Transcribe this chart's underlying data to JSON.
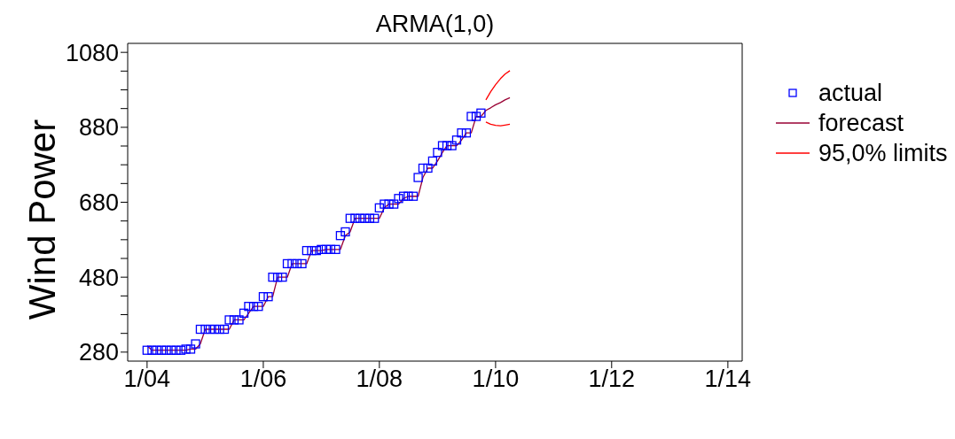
{
  "chart_data": {
    "type": "line",
    "title": "ARMA(1,0)",
    "ylabel": "Wind Power",
    "xlim": [
      "2003-09",
      "2014-04"
    ],
    "xticks": [
      {
        "value": "2004-01",
        "label": "1/04"
      },
      {
        "value": "2006-01",
        "label": "1/06"
      },
      {
        "value": "2008-01",
        "label": "1/08"
      },
      {
        "value": "2010-01",
        "label": "1/10"
      },
      {
        "value": "2012-01",
        "label": "1/12"
      },
      {
        "value": "2014-01",
        "label": "1/14"
      }
    ],
    "ylim": [
      256,
      1104
    ],
    "yticks": [
      280,
      {
        "value": 330,
        "label": null
      },
      {
        "value": 380,
        "label": null
      },
      {
        "value": 430,
        "label": null
      },
      480,
      {
        "value": 530,
        "label": null
      },
      {
        "value": 580,
        "label": null
      },
      {
        "value": 630,
        "label": null
      },
      680,
      {
        "value": 730,
        "label": null
      },
      {
        "value": 780,
        "label": null
      },
      {
        "value": 830,
        "label": null
      },
      880,
      {
        "value": 930,
        "label": null
      },
      {
        "value": 980,
        "label": null
      },
      {
        "value": 1030,
        "label": null
      },
      1080
    ],
    "grid": false,
    "legend": "right",
    "line_style": "solid",
    "series": [
      {
        "name": "actual",
        "type": "scatter",
        "marker": "square",
        "color": "#0000ff",
        "x": [
          "2004-01",
          "2004-02",
          "2004-03",
          "2004-04",
          "2004-05",
          "2004-06",
          "2004-07",
          "2004-08",
          "2004-09",
          "2004-10",
          "2004-11",
          "2004-12",
          "2005-01",
          "2005-02",
          "2005-03",
          "2005-04",
          "2005-05",
          "2005-06",
          "2005-07",
          "2005-08",
          "2005-09",
          "2005-10",
          "2005-11",
          "2005-12",
          "2006-01",
          "2006-02",
          "2006-03",
          "2006-04",
          "2006-05",
          "2006-06",
          "2006-07",
          "2006-08",
          "2006-09",
          "2006-10",
          "2006-11",
          "2006-12",
          "2007-01",
          "2007-02",
          "2007-03",
          "2007-04",
          "2007-05",
          "2007-06",
          "2007-07",
          "2007-08",
          "2007-09",
          "2007-10",
          "2007-11",
          "2007-12",
          "2008-01",
          "2008-02",
          "2008-03",
          "2008-04",
          "2008-05",
          "2008-06",
          "2008-07",
          "2008-08",
          "2008-09",
          "2008-10",
          "2008-11",
          "2008-12",
          "2009-01",
          "2009-02",
          "2009-03",
          "2009-04",
          "2009-05",
          "2009-06",
          "2009-07",
          "2009-08",
          "2009-09",
          "2009-10"
        ],
        "values": [
          285,
          285,
          285,
          285,
          285,
          285,
          285,
          285,
          288,
          288,
          302,
          341,
          341,
          341,
          341,
          341,
          341,
          366,
          366,
          366,
          384,
          402,
          402,
          402,
          428,
          428,
          480,
          480,
          480,
          516,
          516,
          516,
          516,
          551,
          551,
          551,
          554,
          554,
          554,
          554,
          591,
          601,
          637,
          637,
          637,
          637,
          637,
          637,
          665,
          675,
          675,
          675,
          690,
          696,
          696,
          696,
          746,
          771,
          771,
          790,
          813,
          831,
          831,
          831,
          846,
          865,
          865,
          909,
          909,
          918
        ]
      },
      {
        "name": "forecast",
        "marker": "none",
        "color": "#990033",
        "x": [
          "2004-01",
          "2004-02",
          "2004-03",
          "2004-04",
          "2004-05",
          "2004-06",
          "2004-07",
          "2004-08",
          "2004-09",
          "2004-10",
          "2004-11",
          "2004-12",
          "2005-01",
          "2005-02",
          "2005-03",
          "2005-04",
          "2005-05",
          "2005-06",
          "2005-07",
          "2005-08",
          "2005-09",
          "2005-10",
          "2005-11",
          "2005-12",
          "2006-01",
          "2006-02",
          "2006-03",
          "2006-04",
          "2006-05",
          "2006-06",
          "2006-07",
          "2006-08",
          "2006-09",
          "2006-10",
          "2006-11",
          "2006-12",
          "2007-01",
          "2007-02",
          "2007-03",
          "2007-04",
          "2007-05",
          "2007-06",
          "2007-07",
          "2007-08",
          "2007-09",
          "2007-10",
          "2007-11",
          "2007-12",
          "2008-01",
          "2008-02",
          "2008-03",
          "2008-04",
          "2008-05",
          "2008-06",
          "2008-07",
          "2008-08",
          "2008-09",
          "2008-10",
          "2008-11",
          "2008-12",
          "2009-01",
          "2009-02",
          "2009-03",
          "2009-04",
          "2009-05",
          "2009-06",
          "2009-07",
          "2009-08",
          "2009-09",
          "2009-10",
          "2009-11",
          "2009-12",
          "2010-01",
          "2010-02",
          "2010-03",
          "2010-04"
        ],
        "values": [
          297,
          285,
          285,
          285,
          285,
          285,
          285,
          285,
          285,
          288,
          288,
          302,
          341,
          341,
          341,
          341,
          341,
          341,
          366,
          366,
          366,
          384,
          402,
          402,
          402,
          428,
          428,
          480,
          480,
          480,
          516,
          516,
          516,
          516,
          551,
          551,
          551,
          554,
          554,
          554,
          554,
          591,
          601,
          637,
          637,
          637,
          637,
          637,
          637,
          665,
          675,
          675,
          675,
          690,
          696,
          696,
          696,
          746,
          771,
          771,
          790,
          813,
          831,
          831,
          831,
          846,
          865,
          865,
          909,
          909,
          925,
          932,
          940,
          946,
          953,
          959
        ]
      },
      {
        "name": "95,0% limits",
        "marker": "none",
        "color": "#ff0000",
        "x": [
          "2009-11",
          "2009-12",
          "2010-01",
          "2010-02",
          "2010-03",
          "2010-04"
        ],
        "values": [
          953,
          975,
          994,
          1010,
          1022,
          1031
        ]
      },
      {
        "marker": "none",
        "color": "#ff0000",
        "x": [
          "2009-11",
          "2009-12",
          "2010-01",
          "2010-02",
          "2010-03",
          "2010-04"
        ],
        "values": [
          894,
          888,
          885,
          884,
          886,
          888
        ]
      }
    ]
  }
}
